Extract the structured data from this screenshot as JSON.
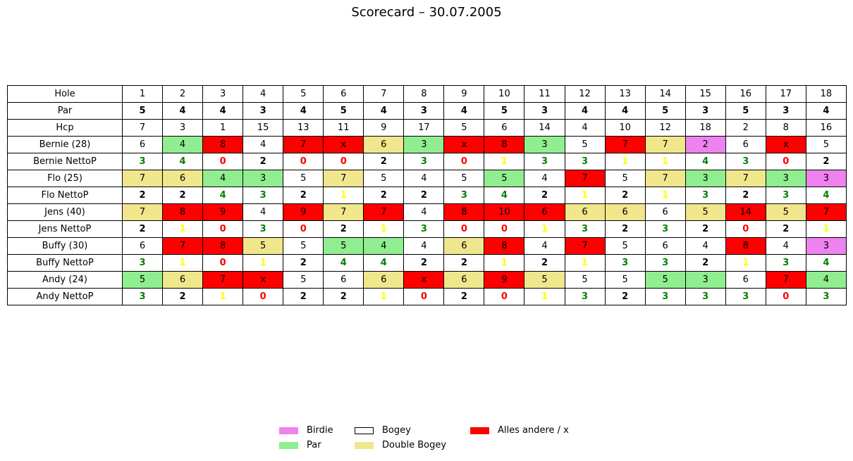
{
  "title": "Scorecard – 30.07.2005",
  "colors": {
    "birdie": "#ee82ee",
    "par": "#90ee90",
    "bogey": "#ffffff",
    "double_bogey": "#f0e68c",
    "other": "#ff0000",
    "netto_green": "#008000",
    "netto_yellow": "#ffff00",
    "netto_red": "#ff0000",
    "netto_black": "#000000"
  },
  "legend": [
    {
      "label": "Birdie",
      "color": "#ee82ee"
    },
    {
      "label": "Par",
      "color": "#90ee90"
    },
    {
      "label": "Bogey",
      "color": "#ffffff"
    },
    {
      "label": "Double Bogey",
      "color": "#f0e68c"
    },
    {
      "label": "Alles andere / x",
      "color": "#ff0000"
    }
  ],
  "chart_data": {
    "type": "table",
    "title": "Scorecard – 30.07.2005",
    "columns": [
      "Hole",
      "1",
      "2",
      "3",
      "4",
      "5",
      "6",
      "7",
      "8",
      "9",
      "10",
      "11",
      "12",
      "13",
      "14",
      "15",
      "16",
      "17",
      "18"
    ],
    "par": [
      "5",
      "4",
      "4",
      "3",
      "4",
      "5",
      "4",
      "3",
      "4",
      "5",
      "3",
      "4",
      "4",
      "5",
      "3",
      "5",
      "3",
      "4"
    ],
    "hcp": [
      "7",
      "3",
      "1",
      "15",
      "13",
      "11",
      "9",
      "17",
      "5",
      "6",
      "14",
      "4",
      "10",
      "12",
      "18",
      "2",
      "8",
      "16"
    ],
    "players": [
      {
        "label": "Bernie (28)",
        "scores": [
          "6",
          "4",
          "8",
          "4",
          "7",
          "x",
          "6",
          "3",
          "x",
          "8",
          "3",
          "5",
          "7",
          "7",
          "2",
          "6",
          "x",
          "5"
        ],
        "netto_label": "Bernie NettoP",
        "netto": [
          "3",
          "4",
          "0",
          "2",
          "0",
          "0",
          "2",
          "3",
          "0",
          "1",
          "3",
          "3",
          "1",
          "1",
          "4",
          "3",
          "0",
          "2"
        ]
      },
      {
        "label": "Flo (25)",
        "scores": [
          "7",
          "6",
          "4",
          "3",
          "5",
          "7",
          "5",
          "4",
          "5",
          "5",
          "4",
          "7",
          "5",
          "7",
          "3",
          "7",
          "3",
          "3"
        ],
        "netto_label": "Flo NettoP",
        "netto": [
          "2",
          "2",
          "4",
          "3",
          "2",
          "1",
          "2",
          "2",
          "3",
          "4",
          "2",
          "1",
          "2",
          "1",
          "3",
          "2",
          "3",
          "4"
        ]
      },
      {
        "label": "Jens (40)",
        "scores": [
          "7",
          "8",
          "9",
          "4",
          "9",
          "7",
          "7",
          "4",
          "8",
          "10",
          "6",
          "6",
          "6",
          "6",
          "5",
          "14",
          "5",
          "7"
        ],
        "netto_label": "Jens NettoP",
        "netto": [
          "2",
          "1",
          "0",
          "3",
          "0",
          "2",
          "1",
          "3",
          "0",
          "0",
          "1",
          "3",
          "2",
          "3",
          "2",
          "0",
          "2",
          "1"
        ]
      },
      {
        "label": "Buffy (30)",
        "scores": [
          "6",
          "7",
          "8",
          "5",
          "5",
          "5",
          "4",
          "4",
          "6",
          "8",
          "4",
          "7",
          "5",
          "6",
          "4",
          "8",
          "4",
          "3"
        ],
        "netto_label": "Buffy NettoP",
        "netto": [
          "3",
          "1",
          "0",
          "1",
          "2",
          "4",
          "4",
          "2",
          "2",
          "1",
          "2",
          "1",
          "3",
          "3",
          "2",
          "1",
          "3",
          "4"
        ]
      },
      {
        "label": "Andy (24)",
        "scores": [
          "5",
          "6",
          "7",
          "x",
          "5",
          "6",
          "6",
          "x",
          "6",
          "9",
          "5",
          "5",
          "5",
          "5",
          "3",
          "6",
          "7",
          "4"
        ],
        "netto_label": "Andy NettoP",
        "netto": [
          "3",
          "2",
          "1",
          "0",
          "2",
          "2",
          "1",
          "0",
          "2",
          "0",
          "1",
          "3",
          "2",
          "3",
          "3",
          "3",
          "0",
          "3"
        ]
      }
    ]
  }
}
